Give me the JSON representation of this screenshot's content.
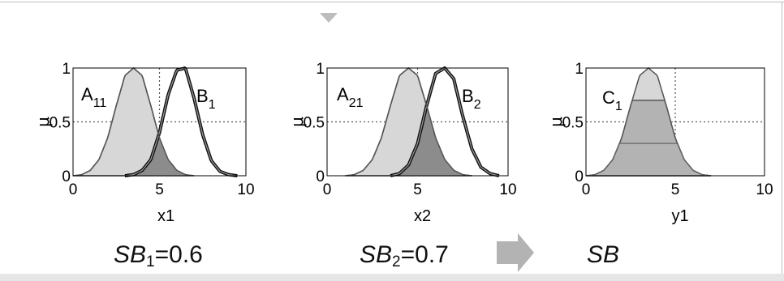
{
  "chart_data": [
    {
      "type": "line",
      "xlabel": "x1",
      "ylabel": "μ",
      "xlim": [
        0,
        10
      ],
      "ylim": [
        0,
        1
      ],
      "xticks": [
        "0",
        "5",
        "10"
      ],
      "yticks": [
        "0",
        "0.5",
        "1"
      ],
      "grid": "dotted at x=5 and y=0.5",
      "series": [
        {
          "name": "A11",
          "label_main": "A",
          "label_sub": "11",
          "color": "#d7d7d7",
          "x": [
            0,
            0.5,
            1,
            1.5,
            2,
            2.5,
            3,
            3.5,
            4,
            4.5,
            5,
            5.5,
            6,
            6.5,
            7
          ],
          "y": [
            0,
            0.01,
            0.05,
            0.15,
            0.35,
            0.65,
            0.93,
            1.0,
            0.93,
            0.65,
            0.35,
            0.15,
            0.05,
            0.01,
            0
          ]
        },
        {
          "name": "B1",
          "label_main": "B",
          "label_sub": "1",
          "color": "#111111",
          "x": [
            3,
            3.5,
            4,
            4.5,
            5,
            5.5,
            6,
            6.5,
            7,
            7.5,
            8,
            8.5,
            9,
            9.5
          ],
          "y": [
            0,
            0.01,
            0.05,
            0.15,
            0.4,
            0.75,
            0.98,
            1.0,
            0.72,
            0.38,
            0.14,
            0.04,
            0.01,
            0
          ]
        }
      ],
      "overlap_fill": "#8c8c8c"
    },
    {
      "type": "line",
      "xlabel": "x2",
      "ylabel": "μ",
      "xlim": [
        0,
        10
      ],
      "ylim": [
        0,
        1
      ],
      "xticks": [
        "0",
        "5",
        "10"
      ],
      "yticks": [
        "0",
        "0.5",
        "1"
      ],
      "grid": "dotted at x=5 and y=0.5",
      "series": [
        {
          "name": "A21",
          "label_main": "A",
          "label_sub": "21",
          "color": "#d7d7d7",
          "x": [
            1,
            1.5,
            2,
            2.5,
            3,
            3.5,
            4,
            4.5,
            5,
            5.5,
            6,
            6.5,
            7,
            7.5,
            8
          ],
          "y": [
            0,
            0.01,
            0.05,
            0.15,
            0.35,
            0.65,
            0.93,
            1.0,
            0.93,
            0.65,
            0.35,
            0.15,
            0.05,
            0.01,
            0
          ]
        },
        {
          "name": "B2",
          "label_main": "B",
          "label_sub": "2",
          "color": "#111111",
          "x": [
            3.5,
            4,
            4.5,
            5,
            5.5,
            6,
            6.5,
            7,
            7.5,
            8,
            8.5,
            9,
            9.5
          ],
          "y": [
            0,
            0.02,
            0.1,
            0.3,
            0.65,
            0.95,
            1.0,
            0.9,
            0.55,
            0.25,
            0.08,
            0.02,
            0
          ]
        }
      ],
      "overlap_fill": "#8c8c8c"
    },
    {
      "type": "area",
      "xlabel": "y1",
      "ylabel": "μ",
      "xlim": [
        0,
        10
      ],
      "ylim": [
        0,
        1
      ],
      "xticks": [
        "0",
        "5",
        "10"
      ],
      "yticks": [
        "0",
        "0.5",
        "1"
      ],
      "grid": "dotted at x=5 and y=0.5",
      "series": [
        {
          "name": "C1",
          "label_main": "C",
          "label_sub": "1",
          "color": "#d7d7d7",
          "x": [
            0,
            0.5,
            1,
            1.5,
            2,
            2.5,
            3,
            3.5,
            4,
            4.5,
            5,
            5.5,
            6,
            6.5,
            7
          ],
          "y": [
            0,
            0.01,
            0.05,
            0.15,
            0.35,
            0.65,
            0.93,
            1.0,
            0.93,
            0.65,
            0.35,
            0.15,
            0.05,
            0.01,
            0
          ],
          "clip": 0.7
        }
      ],
      "fill": "#b3b3b3",
      "inner_level": 0.3
    }
  ],
  "captions": {
    "sb1_main": "SB",
    "sb1_sub": "1",
    "sb1_value": "=0.6",
    "sb2_main": "SB",
    "sb2_sub": "2",
    "sb2_value": "=0.7",
    "sb_result": "SB"
  },
  "colors": {
    "arrow": "#b3b3b3",
    "axes": "#000000",
    "grid": "#555555"
  }
}
